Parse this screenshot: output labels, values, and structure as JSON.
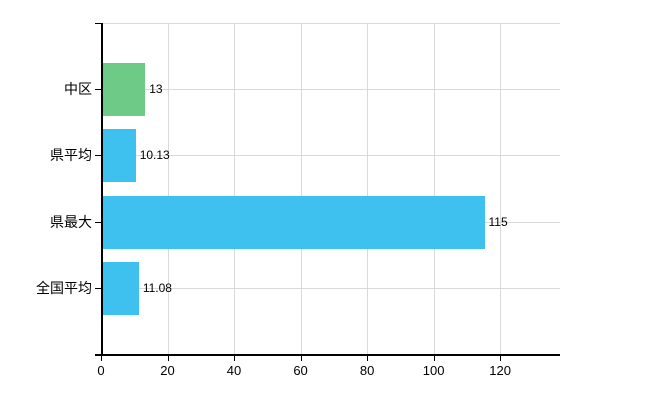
{
  "chart_data": {
    "type": "bar",
    "orientation": "horizontal",
    "title": "",
    "xlabel": "",
    "ylabel": "",
    "categories": [
      "中区",
      "県平均",
      "県最大",
      "全国平均"
    ],
    "values": [
      13,
      10.13,
      115,
      11.08
    ],
    "value_labels": [
      "13",
      "10.13",
      "115",
      "11.08"
    ],
    "bar_colors": [
      "#6eca87",
      "#3fc1f0",
      "#3fc1f0",
      "#3fc1f0"
    ],
    "xticks": [
      0,
      20,
      40,
      60,
      80,
      100,
      120
    ],
    "xtick_labels": [
      "0",
      "20",
      "40",
      "60",
      "80",
      "100",
      "120"
    ],
    "xlim": [
      0,
      138
    ],
    "grid": true,
    "legend": "none",
    "colors": {
      "green_bar": "#6eca87",
      "blue_bar": "#3fc1f0",
      "grid": "#d9d9d9",
      "axis": "#000000",
      "text": "#000000",
      "background": "#ffffff"
    }
  }
}
